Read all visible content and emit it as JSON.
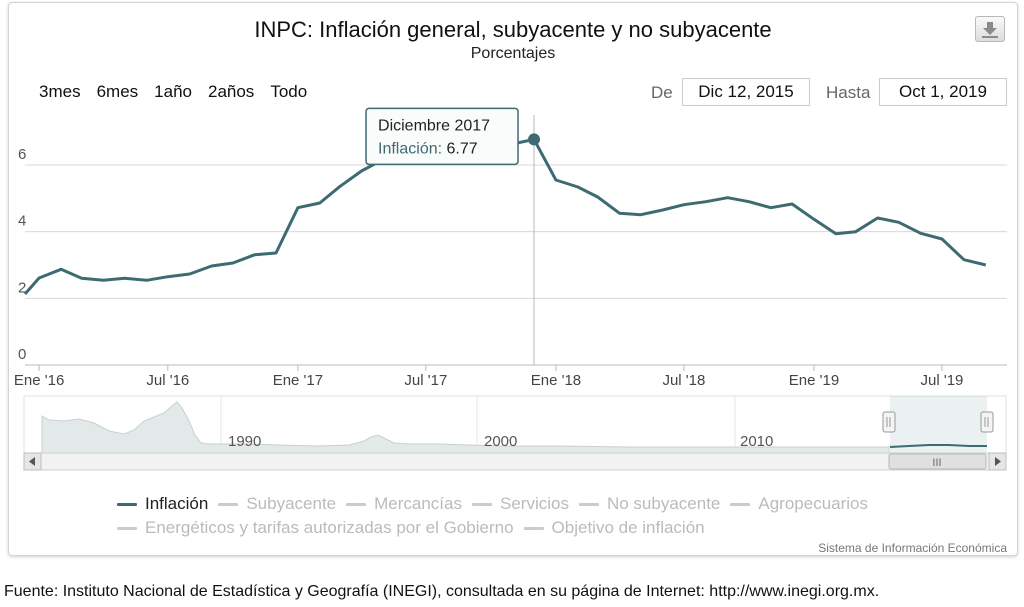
{
  "chart": {
    "title": "INPC: Inflación general, subyacente y no subyacente",
    "subtitle": "Porcentajes",
    "download_icon": "download-icon"
  },
  "range_selector": {
    "buttons": [
      "3mes",
      "6mes",
      "1año",
      "2años",
      "Todo"
    ],
    "from_label": "De",
    "from_value": "Dic 12, 2015",
    "to_label": "Hasta",
    "to_value": "Oct 1, 2019"
  },
  "tooltip": {
    "header": "Diciembre 2017",
    "series_label": "Inflación",
    "separator": ": ",
    "value": "6.77"
  },
  "navigator": {
    "year_labels": [
      "1990",
      "2000",
      "2010"
    ],
    "scroll_grip": "III",
    "left_arrow_icon": "left-arrow-icon",
    "right_arrow_icon": "right-arrow-icon"
  },
  "legend": {
    "row1": [
      "Inflación",
      "Subyacente",
      "Mercancías",
      "Servicios",
      "No subyacente",
      "Agropecuarios"
    ],
    "row2": [
      "Energéticos y tarifas autorizadas por el Gobierno",
      "Objetivo de inflación"
    ],
    "active_color": "#3d6b72",
    "inactive_color": "#cccccc",
    "active_text_color": "#222222",
    "inactive_text_color": "#bbbbbb"
  },
  "credits": "Sistema de Información Económica",
  "source": "Fuente: Instituto Nacional de Estadística y Geografía (INEGI), consultada en su página de Internet: http://www.inegi.org.mx.",
  "chart_data": {
    "type": "line",
    "title": "INPC: Inflación general, subyacente y no subyacente",
    "subtitle": "Porcentajes",
    "ylim": [
      0,
      7.5
    ],
    "yticks": [
      0,
      2,
      4,
      6
    ],
    "xticks": [
      "Ene '16",
      "Jul '16",
      "Ene '17",
      "Jul '17",
      "Ene '18",
      "Jul '18",
      "Ene '19",
      "Jul '19"
    ],
    "grid": true,
    "legend_position": "bottom",
    "series": [
      {
        "name": "Inflación",
        "color": "#3d6b72",
        "x": [
          "2015-12",
          "2016-01",
          "2016-02",
          "2016-03",
          "2016-04",
          "2016-05",
          "2016-06",
          "2016-07",
          "2016-08",
          "2016-09",
          "2016-10",
          "2016-11",
          "2016-12",
          "2017-01",
          "2017-02",
          "2017-03",
          "2017-04",
          "2017-05",
          "2017-06",
          "2017-07",
          "2017-08",
          "2017-09",
          "2017-10",
          "2017-11",
          "2017-12",
          "2018-01",
          "2018-02",
          "2018-03",
          "2018-04",
          "2018-05",
          "2018-06",
          "2018-07",
          "2018-08",
          "2018-09",
          "2018-10",
          "2018-11",
          "2018-12",
          "2019-01",
          "2019-02",
          "2019-03",
          "2019-04",
          "2019-05",
          "2019-06",
          "2019-07",
          "2019-08",
          "2019-09"
        ],
        "values": [
          2.13,
          2.61,
          2.87,
          2.6,
          2.54,
          2.6,
          2.54,
          2.65,
          2.73,
          2.97,
          3.06,
          3.31,
          3.36,
          4.72,
          4.86,
          5.35,
          5.82,
          6.16,
          6.31,
          6.44,
          6.66,
          6.35,
          6.37,
          6.63,
          6.77,
          5.55,
          5.34,
          5.04,
          4.55,
          4.51,
          4.65,
          4.81,
          4.9,
          5.02,
          4.9,
          4.72,
          4.83,
          4.37,
          3.94,
          4.0,
          4.41,
          4.28,
          3.95,
          3.78,
          3.16,
          3.0
        ]
      }
    ]
  }
}
